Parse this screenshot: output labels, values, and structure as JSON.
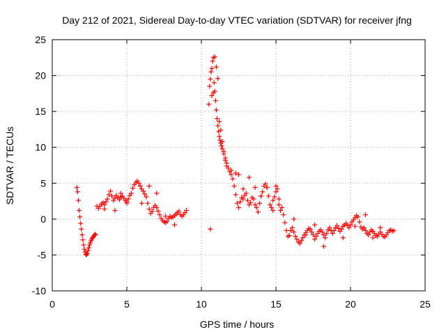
{
  "chart_data": {
    "type": "scatter",
    "title": "Day 212 of 2021, Sidereal Day-to-day VTEC variation (SDTVAR) for receiver jfng",
    "xlabel": "GPS time / hours",
    "ylabel": "SDTVAR / TECUs",
    "xlim": [
      0,
      25
    ],
    "ylim": [
      -10,
      25
    ],
    "xticks": [
      0,
      5,
      10,
      15,
      20,
      25
    ],
    "yticks": [
      -10,
      -5,
      0,
      5,
      10,
      15,
      20,
      25
    ],
    "xtick_labels": [
      "0",
      "5",
      "10",
      "15",
      "20",
      "25"
    ],
    "ytick_labels": [
      "-10",
      "-5",
      "0",
      "5",
      "10",
      "15",
      "20",
      "25"
    ],
    "grid": true,
    "marker": "+",
    "marker_color": "#ff0000",
    "series": [
      {
        "name": "SDTVAR",
        "x": [
          1.65,
          1.7,
          1.75,
          1.8,
          1.85,
          1.9,
          1.95,
          2.0,
          2.05,
          2.1,
          2.15,
          2.2,
          2.25,
          2.3,
          2.35,
          2.4,
          2.45,
          2.5,
          2.55,
          2.6,
          2.65,
          2.7,
          2.75,
          2.8,
          2.85,
          2.9,
          3.0,
          3.1,
          3.2,
          3.3,
          3.4,
          3.5,
          3.6,
          3.7,
          3.8,
          3.9,
          4.0,
          4.1,
          4.2,
          4.3,
          4.4,
          4.5,
          4.6,
          4.7,
          4.8,
          4.9,
          5.0,
          5.1,
          5.2,
          5.3,
          5.4,
          5.5,
          5.6,
          5.7,
          5.8,
          5.9,
          6.0,
          6.1,
          6.2,
          6.3,
          6.4,
          6.5,
          6.6,
          6.7,
          6.8,
          6.9,
          7.0,
          7.1,
          7.2,
          7.3,
          7.4,
          7.5,
          7.6,
          7.7,
          7.8,
          7.9,
          8.0,
          8.1,
          8.2,
          8.3,
          8.4,
          8.5,
          8.6,
          8.7,
          8.8,
          8.9,
          9.0,
          10.5,
          10.55,
          10.6,
          10.65,
          10.7,
          10.75,
          10.8,
          10.85,
          10.9,
          10.95,
          11.0,
          11.05,
          11.1,
          11.15,
          11.2,
          11.25,
          11.3,
          11.35,
          11.4,
          11.5,
          11.6,
          11.7,
          11.8,
          11.9,
          12.0,
          12.1,
          12.2,
          12.3,
          12.4,
          12.5,
          12.6,
          12.7,
          12.8,
          12.9,
          13.0,
          13.1,
          13.2,
          13.3,
          13.4,
          13.5,
          13.6,
          13.7,
          13.8,
          13.9,
          14.0,
          14.1,
          14.2,
          14.3,
          14.4,
          14.5,
          14.6,
          14.7,
          14.8,
          14.9,
          15.0,
          15.1,
          15.2,
          15.3,
          15.4,
          15.5,
          15.6,
          15.7,
          15.8,
          15.9,
          16.0,
          16.1,
          16.2,
          16.3,
          16.4,
          16.5,
          16.6,
          16.7,
          16.8,
          16.9,
          17.0,
          17.1,
          17.2,
          17.3,
          17.4,
          17.5,
          17.6,
          17.7,
          17.8,
          17.9,
          18.0,
          18.1,
          18.2,
          18.3,
          18.4,
          18.5,
          18.6,
          18.7,
          18.8,
          18.9,
          19.0,
          19.1,
          19.2,
          19.3,
          19.4,
          19.5,
          19.6,
          19.7,
          19.8,
          19.9,
          20.0,
          20.1,
          20.2,
          20.3,
          20.4,
          20.5,
          20.6,
          20.7,
          20.8,
          20.9,
          21.0,
          21.1,
          21.2,
          21.3,
          21.4,
          21.5,
          21.6,
          21.7,
          21.8,
          21.9,
          22.0,
          22.1,
          22.2,
          22.3,
          22.4,
          22.5,
          22.6,
          22.7,
          22.8,
          22.9,
          10.6,
          10.7,
          10.8,
          10.9,
          11.0,
          11.1,
          11.2,
          11.3,
          11.4,
          11.5,
          11.6,
          11.7,
          12.0,
          12.3,
          12.5,
          12.8,
          13.2,
          13.6,
          14.0,
          14.4,
          14.8,
          15.0,
          15.2,
          3.5,
          4.2,
          4.6,
          5.0,
          6.0,
          6.5,
          7.0,
          7.6,
          8.2,
          16.2,
          17.0,
          17.6,
          18.2,
          19.5,
          20.3,
          21.0,
          21.5,
          22.0
        ],
        "y": [
          4.4,
          3.8,
          2.6,
          1.2,
          0.3,
          -0.6,
          -1.4,
          -2.2,
          -2.9,
          -3.6,
          -4.2,
          -4.6,
          -4.9,
          -5.0,
          -4.8,
          -4.4,
          -4.0,
          -3.6,
          -3.3,
          -3.0,
          -2.8,
          -2.6,
          -2.5,
          -2.3,
          -2.2,
          -2.1,
          1.8,
          1.5,
          1.8,
          2.1,
          2.3,
          2.0,
          2.4,
          2.8,
          3.4,
          3.9,
          3.2,
          2.6,
          2.9,
          3.3,
          3.0,
          2.7,
          3.1,
          3.2,
          2.9,
          2.6,
          2.4,
          2.8,
          3.3,
          3.6,
          4.3,
          4.8,
          5.1,
          5.3,
          5.0,
          4.6,
          4.2,
          3.9,
          3.5,
          3.1,
          2.2,
          1.4,
          0.8,
          1.1,
          1.6,
          1.9,
          1.6,
          1.1,
          0.6,
          0.1,
          -0.2,
          -0.4,
          -0.5,
          -0.3,
          0.1,
          0.4,
          0.2,
          0.3,
          0.5,
          0.7,
          0.9,
          1.1,
          0.6,
          0.4,
          0.6,
          0.9,
          1.2,
          16.0,
          18.5,
          19.5,
          20.5,
          21.0,
          22.0,
          22.5,
          19.0,
          17.8,
          16.5,
          15.2,
          14.0,
          13.0,
          12.2,
          11.5,
          11.0,
          10.6,
          10.2,
          9.8,
          9.1,
          8.5,
          7.8,
          7.1,
          6.6,
          6.2,
          5.6,
          4.6,
          3.4,
          2.2,
          1.6,
          2.4,
          3.0,
          2.8,
          3.3,
          3.6,
          2.6,
          2.0,
          2.3,
          3.0,
          2.8,
          2.0,
          1.6,
          1.0,
          2.2,
          3.2,
          3.8,
          4.6,
          4.9,
          4.4,
          3.2,
          2.0,
          1.6,
          1.2,
          3.1,
          4.6,
          4.2,
          2.0,
          1.2,
          1.6,
          0.6,
          -0.5,
          -1.6,
          -2.4,
          -2.3,
          -1.6,
          -1.2,
          -1.8,
          -2.4,
          -2.8,
          -3.2,
          -3.4,
          -3.0,
          -2.6,
          -2.2,
          -1.9,
          -1.6,
          -1.3,
          -1.4,
          -1.8,
          -2.2,
          -2.8,
          -2.4,
          -2.0,
          -1.7,
          -1.5,
          -1.8,
          -2.2,
          -2.6,
          -2.0,
          -1.5,
          -1.2,
          -1.6,
          -2.0,
          -1.6,
          -1.2,
          -0.9,
          -1.3,
          -1.7,
          -1.4,
          -1.0,
          -0.8,
          -0.6,
          -0.9,
          -1.2,
          -0.8,
          -0.4,
          -0.1,
          0.2,
          0.5,
          0.3,
          -0.4,
          -1.1,
          -1.4,
          -1.2,
          -1.6,
          -2.0,
          -2.2,
          -1.8,
          -1.5,
          -1.7,
          -2.0,
          -2.3,
          -2.4,
          -2.1,
          -1.8,
          -2.1,
          -2.4,
          -2.5,
          -2.2,
          -1.9,
          -1.6,
          -1.5,
          -1.7,
          -1.6,
          -1.4,
          17.2,
          17.6,
          22.6,
          21.2,
          19.6,
          13.6,
          12.4,
          10.8,
          9.4,
          8.2,
          7.4,
          6.8,
          6.4,
          6.2,
          4.2,
          5.8,
          4.4,
          3.2,
          4.4,
          2.6,
          3.8,
          2.8,
          1.4,
          1.2,
          3.6,
          2.2,
          2.2,
          4.6,
          3.6,
          0.4,
          -0.8,
          0.0,
          -2.2,
          -0.8,
          -3.8,
          -2.6,
          -1.0,
          0.6,
          -2.6,
          -1.2
        ]
      }
    ]
  }
}
